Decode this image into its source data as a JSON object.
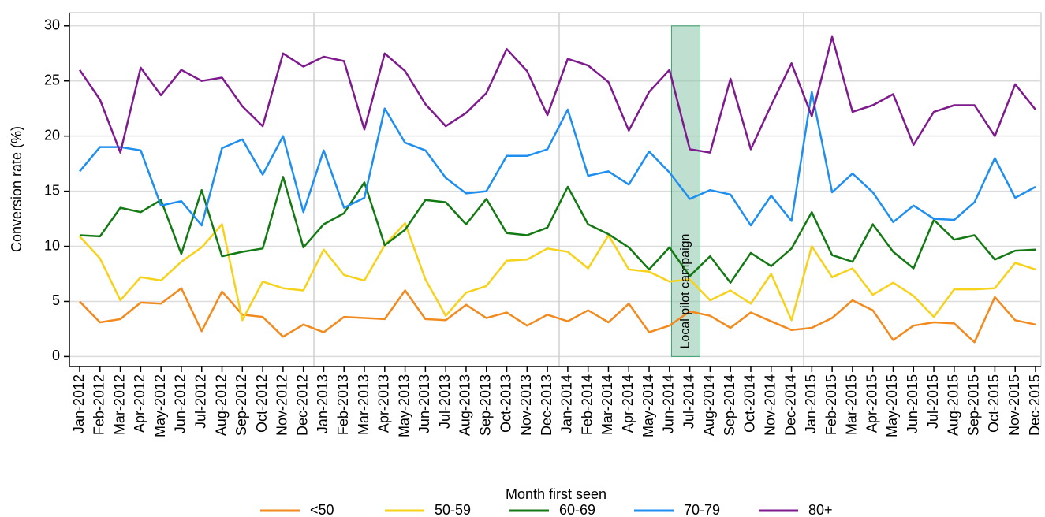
{
  "chart_data": {
    "type": "line",
    "y_label": "Conversion rate (%)",
    "x_label": "Month first seen",
    "categories": [
      "Jan-2012",
      "Feb-2012",
      "Mar-2012",
      "Apr-2012",
      "May-2012",
      "Jun-2012",
      "Jul-2012",
      "Aug-2012",
      "Sep-2012",
      "Oct-2012",
      "Nov-2012",
      "Dec-2012",
      "Jan-2013",
      "Feb-2013",
      "Mar-2013",
      "Apr-2013",
      "May-2013",
      "Jun-2013",
      "Jul-2013",
      "Aug-2013",
      "Sep-2013",
      "Oct-2013",
      "Nov-2013",
      "Dec-2013",
      "Jan-2014",
      "Feb-2014",
      "Mar-2014",
      "Apr-2014",
      "May-2014",
      "Jun-2014",
      "Jul-2014",
      "Aug-2014",
      "Sep-2014",
      "Oct-2014",
      "Nov-2014",
      "Dec-2014",
      "Jan-2015",
      "Feb-2015",
      "Mar-2015",
      "Apr-2015",
      "May-2015",
      "Jun-2015",
      "Jul-2015",
      "Aug-2015",
      "Sep-2015",
      "Oct-2015",
      "Nov-2015",
      "Dec-2015"
    ],
    "series": [
      {
        "name": "<50",
        "color": "#f28a1e",
        "values": [
          5.0,
          3.1,
          3.4,
          4.9,
          4.8,
          6.2,
          2.3,
          5.9,
          3.8,
          3.6,
          1.8,
          2.9,
          2.2,
          3.6,
          3.5,
          3.4,
          6.0,
          3.4,
          3.3,
          4.7,
          3.5,
          4.0,
          2.8,
          3.8,
          3.2,
          4.2,
          3.1,
          4.8,
          2.2,
          2.8,
          4.1,
          3.7,
          2.6,
          4.0,
          3.2,
          2.4,
          2.6,
          3.5,
          5.1,
          4.2,
          1.5,
          2.8,
          3.1,
          3.0,
          1.3,
          5.4,
          3.3,
          2.9
        ]
      },
      {
        "name": "50-59",
        "color": "#f7d21a",
        "values": [
          10.9,
          8.9,
          5.1,
          7.2,
          6.9,
          8.6,
          9.9,
          12.0,
          3.3,
          6.8,
          6.2,
          6.0,
          9.7,
          7.4,
          6.9,
          10.1,
          12.1,
          7.0,
          3.7,
          5.8,
          6.4,
          8.7,
          8.8,
          9.8,
          9.5,
          8.0,
          11.0,
          7.9,
          7.7,
          6.8,
          7.0,
          5.1,
          6.0,
          4.8,
          7.5,
          3.3,
          10.0,
          7.2,
          8.0,
          5.6,
          6.7,
          5.5,
          3.6,
          6.1,
          6.1,
          6.2,
          8.5,
          7.9
        ]
      },
      {
        "name": "60-69",
        "color": "#137a13",
        "values": [
          11.0,
          10.9,
          13.5,
          13.1,
          14.2,
          9.3,
          15.1,
          9.1,
          9.5,
          9.8,
          16.3,
          9.9,
          12.0,
          13.0,
          15.8,
          10.1,
          11.5,
          14.2,
          14.0,
          12.0,
          14.3,
          11.2,
          11.0,
          11.7,
          15.4,
          12.0,
          11.1,
          9.9,
          7.9,
          9.9,
          7.3,
          9.1,
          6.7,
          9.4,
          8.2,
          9.8,
          13.1,
          9.2,
          8.6,
          12.0,
          9.5,
          8.0,
          12.4,
          10.6,
          11.0,
          8.8,
          9.6,
          9.7
        ]
      },
      {
        "name": "70-79",
        "color": "#1e8ff0",
        "values": [
          16.8,
          19.0,
          19.0,
          18.7,
          13.7,
          14.1,
          11.9,
          18.9,
          19.7,
          16.5,
          20.0,
          13.1,
          18.7,
          13.5,
          14.4,
          22.5,
          19.4,
          18.7,
          16.2,
          14.8,
          15.0,
          18.2,
          18.2,
          18.8,
          22.4,
          16.4,
          16.8,
          15.6,
          18.6,
          16.7,
          14.3,
          15.1,
          14.7,
          11.9,
          14.6,
          12.3,
          24.0,
          14.9,
          16.6,
          14.9,
          12.2,
          13.7,
          12.5,
          12.4,
          14.0,
          18.0,
          14.4,
          15.4
        ]
      },
      {
        "name": "80+",
        "color": "#7e1a8e",
        "values": [
          26.0,
          23.3,
          18.5,
          26.2,
          23.7,
          26.0,
          25.0,
          25.3,
          22.7,
          20.9,
          27.5,
          26.3,
          27.2,
          26.8,
          20.6,
          27.5,
          25.9,
          22.9,
          20.9,
          22.1,
          23.9,
          27.9,
          25.9,
          21.9,
          27.0,
          26.4,
          24.9,
          20.5,
          24.0,
          26.0,
          18.8,
          18.5,
          25.2,
          18.8,
          22.8,
          26.6,
          21.8,
          29.0,
          22.2,
          22.8,
          23.8,
          19.2,
          22.2,
          22.8,
          22.8,
          20.0,
          24.7,
          22.4
        ]
      }
    ],
    "annotation": {
      "text": "Local pilot campaign",
      "start": "Jun-2014",
      "end": "Jul-2014",
      "color": "#8ac6a9"
    },
    "ylim": [
      -0.9,
      31.2
    ],
    "yticks": [
      0,
      5,
      10,
      15,
      20,
      25,
      30
    ],
    "grid": true,
    "legend": "bottom"
  }
}
